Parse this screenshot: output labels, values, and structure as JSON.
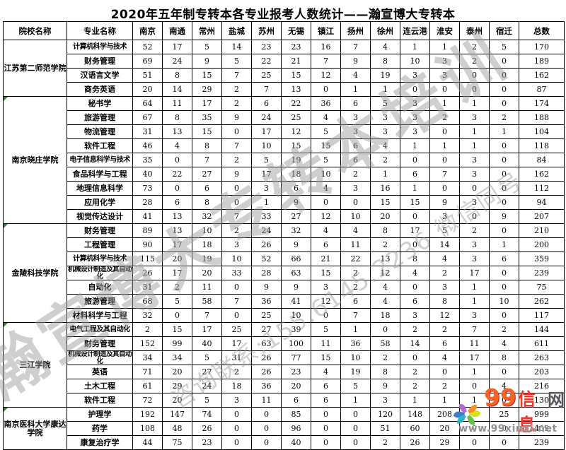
{
  "title": "2020年五年制专转本各专业报考人数统计——瀚宣博大专转本",
  "table": {
    "columns": [
      "院校名称",
      "专业名称",
      "南京",
      "南通",
      "常州",
      "盐城",
      "苏州",
      "无锡",
      "镇江",
      "扬州",
      "徐州",
      "连云港",
      "淮安",
      "泰州",
      "宿迁",
      "总数"
    ],
    "groups": [
      {
        "college": "江苏第二师范学院",
        "majors": [
          {
            "name": "计算机科学与技术",
            "values": [
              52,
              17,
              5,
              14,
              23,
              23,
              16,
              7,
              4,
              1,
              1,
              2,
              5,
              170
            ]
          },
          {
            "name": "财务管理",
            "values": [
              69,
              24,
              9,
              5,
              22,
              21,
              7,
              9,
              8,
              10,
              3,
              2,
              0,
              189
            ]
          },
          {
            "name": "汉语言文学",
            "values": [
              51,
              8,
              15,
              7,
              25,
              15,
              12,
              4,
              19,
              3,
              3,
              0,
              0,
              162
            ]
          },
          {
            "name": "商务英语",
            "values": [
              20,
              14,
              29,
              2,
              7,
              13,
              0,
              1,
              1,
              0,
              0,
              0,
              0,
              87
            ]
          }
        ]
      },
      {
        "college": "南京晓庄学院",
        "majors": [
          {
            "name": "秘书学",
            "values": [
              64,
              11,
              17,
              2,
              6,
              22,
              36,
              6,
              5,
              3,
              1,
              1,
              0,
              174
            ]
          },
          {
            "name": "旅游管理",
            "values": [
              67,
              8,
              35,
              9,
              24,
              25,
              4,
              3,
              3,
              3,
              2,
              3,
              2,
              188
            ]
          },
          {
            "name": "物流管理",
            "values": [
              31,
              13,
              15,
              0,
              17,
              12,
              5,
              3,
              3,
              3,
              0,
              1,
              1,
              104
            ]
          },
          {
            "name": "软件工程",
            "values": [
              46,
              4,
              8,
              7,
              10,
              15,
              15,
              6,
              4,
              1,
              1,
              1,
              0,
              118
            ]
          },
          {
            "name": "电子信息科学与技术",
            "values": [
              35,
              0,
              7,
              2,
              5,
              19,
              5,
              6,
              2,
              0,
              0,
              3,
              0,
              84
            ]
          },
          {
            "name": "食品科学与工程",
            "values": [
              40,
              22,
              27,
              9,
              17,
              18,
              10,
              2,
              1,
              6,
              7,
              3,
              0,
              162
            ]
          },
          {
            "name": "地理信息科学",
            "values": [
              73,
              0,
              6,
              0,
              3,
              6,
              4,
              3,
              16,
              1,
              0,
              0,
              0,
              112
            ]
          },
          {
            "name": "应用化学",
            "values": [
              28,
              6,
              8,
              0,
              1,
              9,
              0,
              0,
              15,
              15,
              9,
              3,
              0,
              94
            ]
          },
          {
            "name": "视觉传达设计",
            "values": [
              41,
              13,
              32,
              7,
              33,
              27,
              12,
              10,
              20,
              0,
              3,
              0,
              9,
              207
            ]
          }
        ]
      },
      {
        "college": "金陵科技学院",
        "majors": [
          {
            "name": "财务管理",
            "values": [
              89,
              13,
              10,
              2,
              24,
              32,
              4,
              4,
              8,
              17,
              5,
              2,
              0,
              210
            ]
          },
          {
            "name": "工程管理",
            "values": [
              90,
              17,
              18,
              3,
              26,
              9,
              6,
              11,
              2,
              0,
              14,
              3,
              1,
              200
            ]
          },
          {
            "name": "计算机科学与技术",
            "values": [
              115,
              20,
              19,
              10,
              52,
              66,
              21,
              22,
              13,
              8,
              4,
              3,
              6,
              359
            ]
          },
          {
            "name": "机械设计制造及其自动化",
            "values": [
              26,
              17,
              20,
              33,
              28,
              63,
              15,
              2,
              12,
              4,
              2,
              17,
              0,
              239
            ]
          },
          {
            "name": "自动化",
            "values": [
              31,
              2,
              11,
              0,
              9,
              9,
              3,
              2,
              4,
              0,
              3,
              1,
              0,
              75
            ]
          },
          {
            "name": "旅游管理",
            "values": [
              68,
              5,
              58,
              7,
              36,
              41,
              12,
              6,
              4,
              6,
              8,
              1,
              10,
              262
            ]
          },
          {
            "name": "材料科学与工程",
            "values": [
              32,
              0,
              7,
              0,
              25,
              10,
              0,
              7,
              18,
              3,
              12,
              3,
              0,
              117
            ]
          }
        ]
      },
      {
        "college": "三江学院",
        "majors": [
          {
            "name": "电气工程及其自动化",
            "values": [
              2,
              15,
              17,
              25,
              27,
              39,
              5,
              1,
              0,
              2,
              2,
              7,
              2,
              144
            ]
          },
          {
            "name": "财务管理",
            "values": [
              152,
              99,
              40,
              17,
              63,
              100,
              11,
              36,
              58,
              14,
              6,
              11,
              4,
              611
            ]
          },
          {
            "name": "机械设计制造及其自动化",
            "values": [
              34,
              34,
              5,
              31,
              26,
              77,
              15,
              10,
              2,
              0,
              4,
              17,
              8,
              263
            ]
          },
          {
            "name": "英语",
            "values": [
              71,
              20,
              27,
              2,
              26,
              23,
              4,
              19,
              8,
              2,
              0,
              1,
              0,
              203
            ]
          },
          {
            "name": "土木工程",
            "values": [
              61,
              29,
              24,
              18,
              36,
              20,
              6,
              5,
              9,
              2,
              2,
              0,
              4,
              216
            ]
          },
          {
            "name": "软件工程",
            "values": [
              72,
              20,
              5,
              3,
              11,
              6,
              6,
              1,
              3,
              1,
              1,
              1,
              0,
              130
            ]
          }
        ]
      },
      {
        "college": "南京医科大学康达学院",
        "majors": [
          {
            "name": "护理学",
            "values": [
              192,
              147,
              74,
              0,
              0,
              85,
              0,
              0,
              120,
              148,
              208,
              0,
              25,
              999
            ]
          },
          {
            "name": "药学",
            "values": [
              108,
              48,
              26,
              0,
              0,
              96,
              0,
              0,
              51,
              60,
              20,
              0,
              0,
              409
            ]
          },
          {
            "name": "康复治疗学",
            "values": [
              44,
              75,
              23,
              0,
              0,
              40,
              0,
              0,
              2,
              26,
              29,
              0,
              0,
              239
            ]
          }
        ]
      }
    ]
  },
  "watermark": {
    "line1": "瀚宣博大专转本培训",
    "line2": "咨询联系:155.6145.2236 微信同号"
  },
  "logo": {
    "part1": "99",
    "part2": "信息",
    "part3": "网",
    "url_text": "www.99xinxi.net"
  },
  "colors": {
    "border": "#000000",
    "watermark_gray": "#9c9c9c",
    "green_triangle": "#2e8b3a",
    "logo_orange": "#f26522",
    "logo_red": "#e63b2e",
    "logo_gray": "#55565a"
  }
}
